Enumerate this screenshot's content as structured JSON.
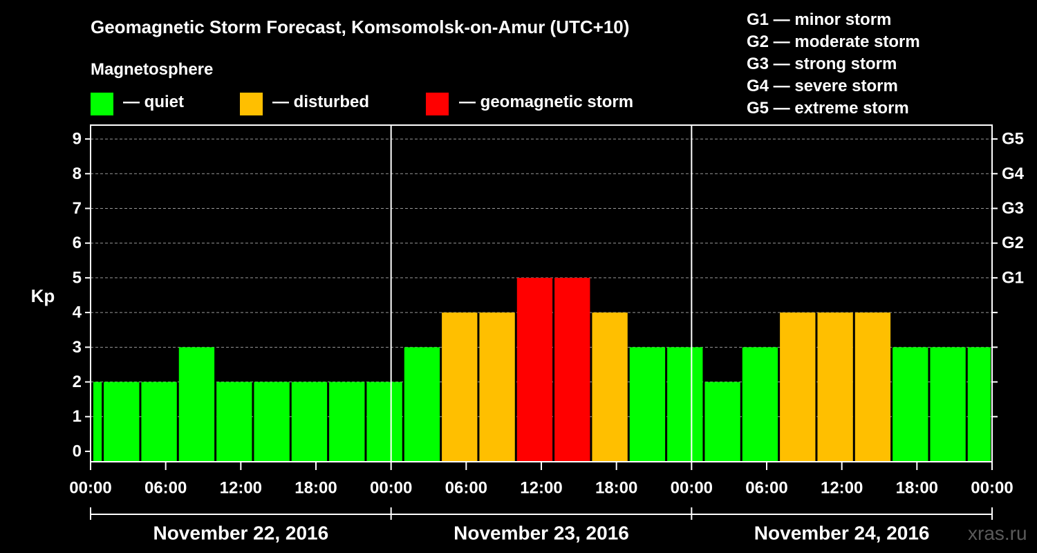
{
  "colors": {
    "background": "#000000",
    "axis": "#ffffff",
    "grid": "#9a9a9a",
    "quiet": "#00ff00",
    "disturbed": "#ffbf00",
    "storm": "#ff0000",
    "watermark": "#5a5a5a"
  },
  "header": {
    "title": "Geomagnetic Storm Forecast, Komsomolsk-on-Amur (UTC+10)",
    "subtitle": "Magnetosphere"
  },
  "legend": {
    "quiet": "— quiet",
    "disturbed": "— disturbed",
    "storm": "— geomagnetic storm"
  },
  "g_scale": [
    "G1 — minor storm",
    "G2 — moderate storm",
    "G3 — strong storm",
    "G4 — severe storm",
    "G5 — extreme storm"
  ],
  "watermark": "xras.ru",
  "chart_data": {
    "type": "bar",
    "title": "Geomagnetic Storm Forecast, Komsomolsk-on-Amur (UTC+10)",
    "ylabel": "Kp",
    "xlabel": "",
    "ylim": [
      -0.3,
      9.4
    ],
    "y_ticks": [
      "0",
      "1",
      "2",
      "3",
      "4",
      "5",
      "6",
      "7",
      "8",
      "9"
    ],
    "right_axis_ticks": [
      {
        "kp": 5,
        "label": "G1"
      },
      {
        "kp": 6,
        "label": "G2"
      },
      {
        "kp": 7,
        "label": "G3"
      },
      {
        "kp": 8,
        "label": "G4"
      },
      {
        "kp": 9,
        "label": "G5"
      }
    ],
    "grid": "dashed horizontal at Kp 1-9",
    "x_range_hours": [
      0,
      72
    ],
    "x_tick_labels": [
      "00:00",
      "06:00",
      "12:00",
      "18:00",
      "00:00",
      "06:00",
      "12:00",
      "18:00",
      "00:00",
      "06:00",
      "12:00",
      "18:00",
      "00:00"
    ],
    "dates": [
      "November 22, 2016",
      "November 23, 2016",
      "November 24, 2016"
    ],
    "bars": [
      {
        "start_hour": 0,
        "end_hour": 1,
        "kp": 2,
        "level": "quiet"
      },
      {
        "start_hour": 1,
        "end_hour": 4,
        "kp": 2,
        "level": "quiet"
      },
      {
        "start_hour": 4,
        "end_hour": 7,
        "kp": 2,
        "level": "quiet"
      },
      {
        "start_hour": 7,
        "end_hour": 10,
        "kp": 3,
        "level": "quiet"
      },
      {
        "start_hour": 10,
        "end_hour": 13,
        "kp": 2,
        "level": "quiet"
      },
      {
        "start_hour": 13,
        "end_hour": 16,
        "kp": 2,
        "level": "quiet"
      },
      {
        "start_hour": 16,
        "end_hour": 19,
        "kp": 2,
        "level": "quiet"
      },
      {
        "start_hour": 19,
        "end_hour": 22,
        "kp": 2,
        "level": "quiet"
      },
      {
        "start_hour": 22,
        "end_hour": 25,
        "kp": 2,
        "level": "quiet"
      },
      {
        "start_hour": 25,
        "end_hour": 28,
        "kp": 3,
        "level": "quiet"
      },
      {
        "start_hour": 28,
        "end_hour": 31,
        "kp": 4,
        "level": "disturbed"
      },
      {
        "start_hour": 31,
        "end_hour": 34,
        "kp": 4,
        "level": "disturbed"
      },
      {
        "start_hour": 34,
        "end_hour": 37,
        "kp": 5,
        "level": "storm"
      },
      {
        "start_hour": 37,
        "end_hour": 40,
        "kp": 5,
        "level": "storm"
      },
      {
        "start_hour": 40,
        "end_hour": 43,
        "kp": 4,
        "level": "disturbed"
      },
      {
        "start_hour": 43,
        "end_hour": 46,
        "kp": 3,
        "level": "quiet"
      },
      {
        "start_hour": 46,
        "end_hour": 49,
        "kp": 3,
        "level": "quiet"
      },
      {
        "start_hour": 49,
        "end_hour": 52,
        "kp": 2,
        "level": "quiet"
      },
      {
        "start_hour": 52,
        "end_hour": 55,
        "kp": 3,
        "level": "quiet"
      },
      {
        "start_hour": 55,
        "end_hour": 58,
        "kp": 4,
        "level": "disturbed"
      },
      {
        "start_hour": 58,
        "end_hour": 61,
        "kp": 4,
        "level": "disturbed"
      },
      {
        "start_hour": 61,
        "end_hour": 64,
        "kp": 4,
        "level": "disturbed"
      },
      {
        "start_hour": 64,
        "end_hour": 67,
        "kp": 3,
        "level": "quiet"
      },
      {
        "start_hour": 67,
        "end_hour": 70,
        "kp": 3,
        "level": "quiet"
      },
      {
        "start_hour": 70,
        "end_hour": 72,
        "kp": 3,
        "level": "quiet"
      }
    ]
  }
}
